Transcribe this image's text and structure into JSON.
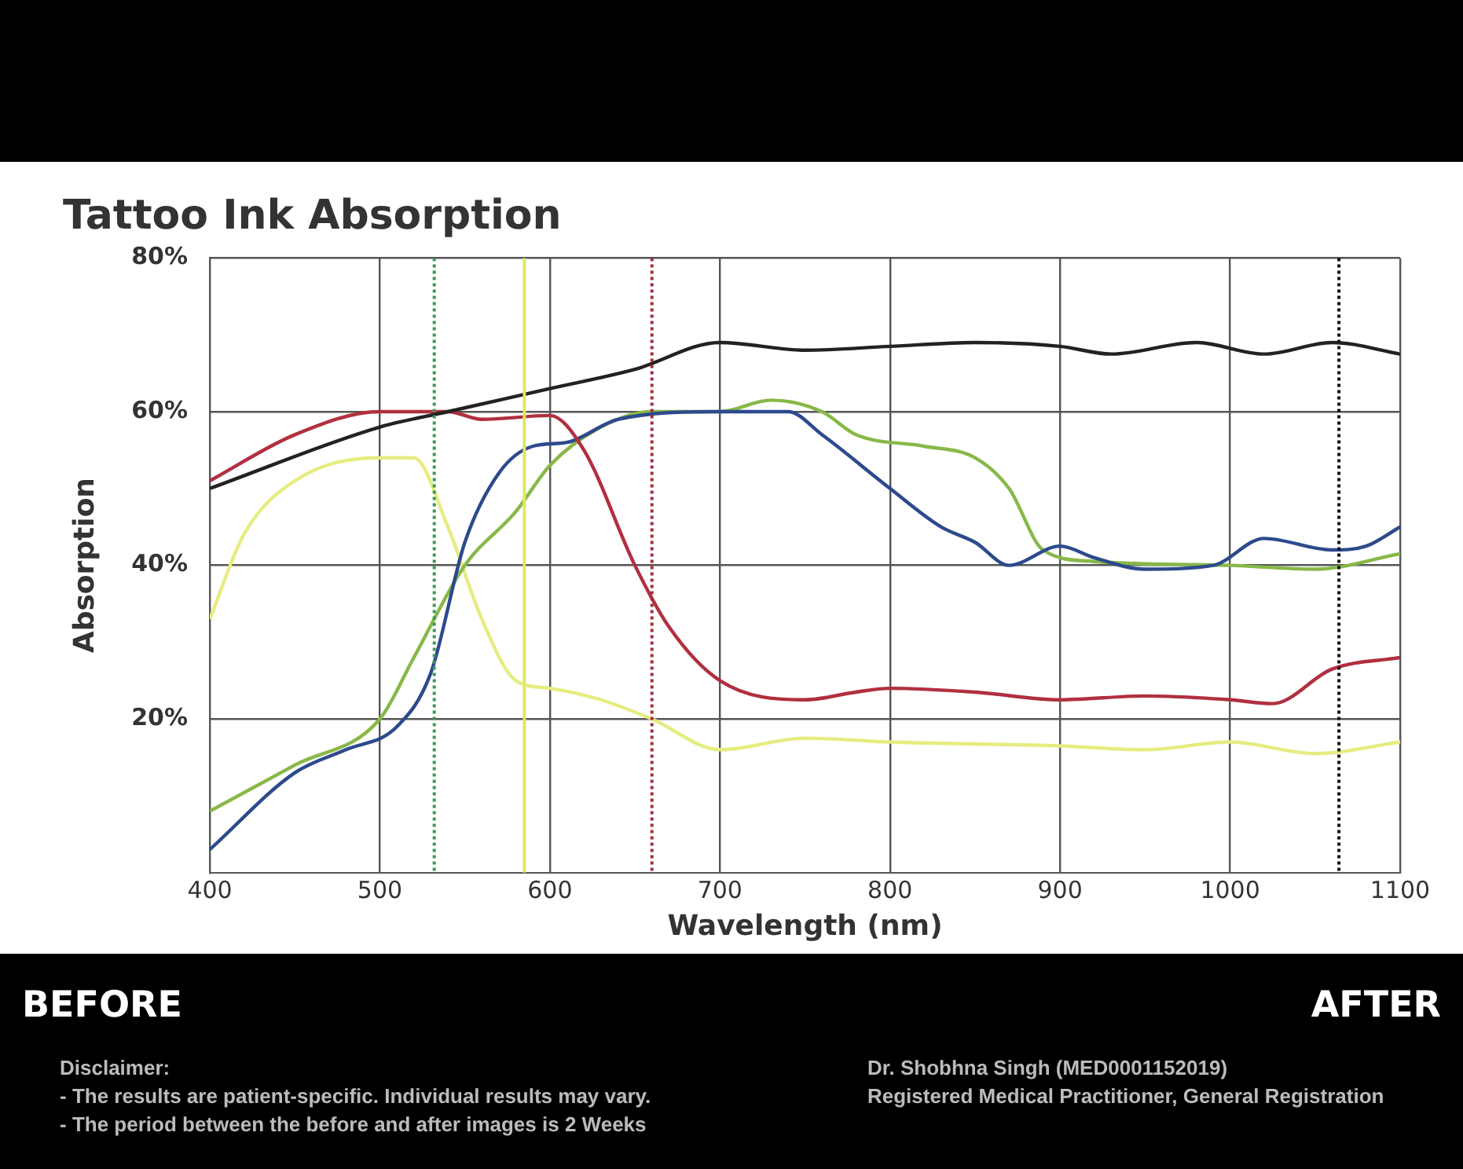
{
  "chart_data": {
    "type": "line",
    "title": "Tattoo Ink Absorption",
    "xlabel": "Wavelength (nm)",
    "ylabel": "Absorption",
    "annotations": [
      "BEFORE",
      "AFTER",
      "Disclaimer:",
      "- The results are patient-specific. Individual results may vary.",
      "- The period between the before and after images is 2 Weeks",
      "Dr. Shobhna Singh (MED0001152019)",
      "Registered Medical Practitioner, General Registration"
    ],
    "xlim": [
      400,
      1100
    ],
    "xticks": [
      400,
      500,
      600,
      700,
      800,
      900,
      1000,
      1100
    ],
    "ylim": [
      0,
      80
    ],
    "yticks": [
      {
        "value": 20,
        "label": "20%"
      },
      {
        "value": 40,
        "label": "40%"
      },
      {
        "value": 60,
        "label": "60%"
      },
      {
        "value": 80,
        "label": "80%"
      }
    ],
    "grid": true,
    "legend": false,
    "marker": "none",
    "line_style": "solid",
    "ref_lines": [
      {
        "axis": "x",
        "value": 532,
        "color": "#3a9a5a",
        "line_style": "dotted"
      },
      {
        "axis": "x",
        "value": 585,
        "color": "#e0e860",
        "line_style": "solid"
      },
      {
        "axis": "x",
        "value": 660,
        "color": "#a03040",
        "line_style": "dotted"
      },
      {
        "axis": "x",
        "value": 1064,
        "color": "#111111",
        "line_style": "dotted"
      }
    ],
    "series": [
      {
        "color": "#222222",
        "x": [
          400,
          500,
          540,
          600,
          650,
          700,
          750,
          800,
          850,
          900,
          930,
          980,
          1020,
          1060,
          1100
        ],
        "values": [
          50,
          58,
          60,
          63,
          65.5,
          69,
          68,
          68.5,
          69,
          68.5,
          67.5,
          69,
          67.5,
          69,
          67.5
        ]
      },
      {
        "color": "#b03040",
        "x": [
          400,
          450,
          500,
          540,
          560,
          600,
          620,
          650,
          670,
          700,
          750,
          780,
          800,
          850,
          900,
          950,
          1000,
          1025,
          1060,
          1100
        ],
        "values": [
          51,
          57,
          60,
          60,
          59,
          59.5,
          55,
          40,
          32,
          25,
          22.5,
          23.5,
          24,
          23.5,
          22.5,
          23,
          22.5,
          22,
          26.5,
          28
        ]
      },
      {
        "color": "#2c4a8c",
        "x": [
          400,
          450,
          480,
          510,
          530,
          550,
          570,
          590,
          610,
          640,
          700,
          740,
          760,
          800,
          830,
          850,
          870,
          900,
          920,
          950,
          990,
          1020,
          1060,
          1080,
          1100
        ],
        "values": [
          3,
          13,
          16,
          19,
          26,
          43,
          52,
          55.5,
          56,
          59,
          60,
          60,
          57,
          50,
          45,
          43,
          40,
          42.5,
          41,
          39.5,
          40,
          43.5,
          42,
          42.5,
          45
        ]
      },
      {
        "color": "#88b848",
        "x": [
          400,
          450,
          500,
          520,
          550,
          580,
          600,
          630,
          660,
          700,
          730,
          760,
          780,
          820,
          850,
          870,
          890,
          920,
          1000,
          1050,
          1100
        ],
        "values": [
          8,
          14,
          20,
          28,
          40,
          47,
          53,
          58,
          60,
          60,
          61.5,
          60,
          57,
          55.5,
          54,
          50,
          42,
          40.5,
          40,
          39.5,
          41.5
        ]
      },
      {
        "color": "#e6ec80",
        "x": [
          400,
          420,
          450,
          500,
          520,
          540,
          560,
          580,
          600,
          630,
          660,
          700,
          750,
          800,
          900,
          950,
          1000,
          1050,
          1100
        ],
        "values": [
          33,
          44,
          51,
          54,
          54,
          45,
          33,
          25,
          24,
          22.5,
          20,
          16,
          17.5,
          17,
          16.5,
          16,
          17,
          15.5,
          17
        ]
      }
    ]
  }
}
